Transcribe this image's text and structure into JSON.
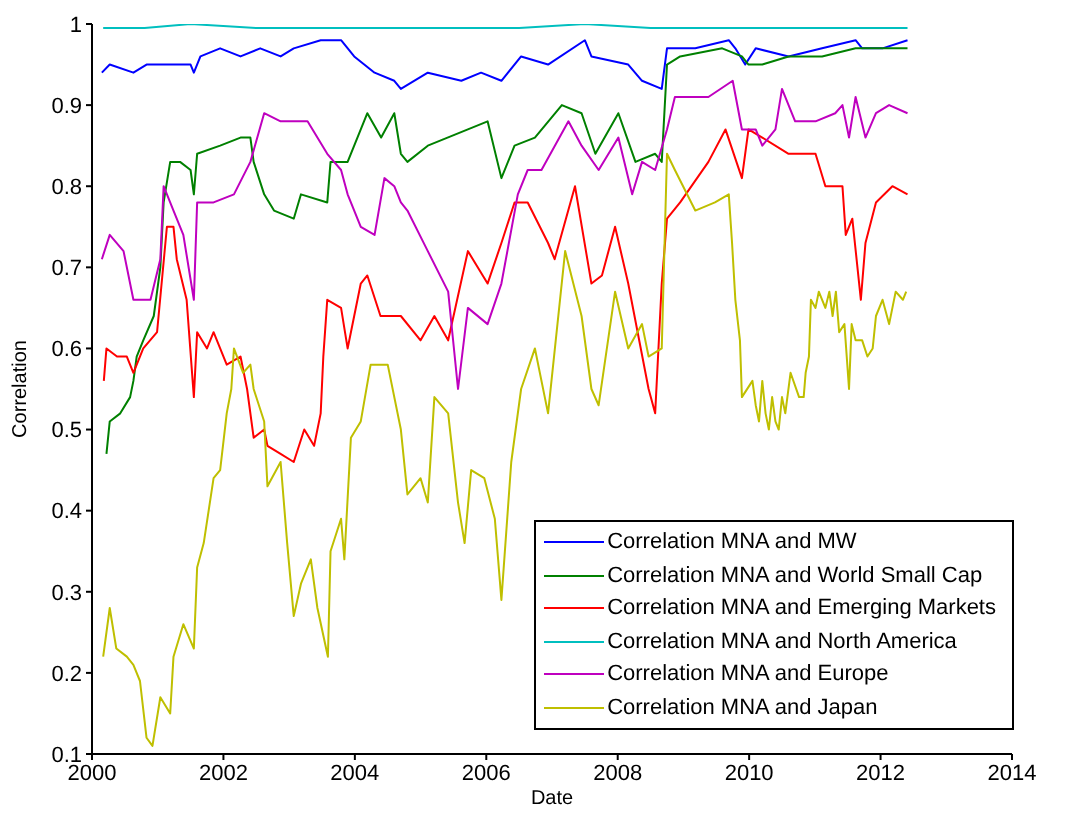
{
  "chart_data": {
    "type": "line",
    "xlabel": "Date",
    "ylabel": "Correlation",
    "xlim": [
      2000,
      2014
    ],
    "xticks": [
      2000,
      2002,
      2004,
      2006,
      2008,
      2010,
      2012,
      2014
    ],
    "ylim": [
      0.1,
      1
    ],
    "yticks": [
      0.1,
      0.2,
      0.3,
      0.4,
      0.5,
      0.6,
      0.7,
      0.8,
      0.9,
      1
    ],
    "legend": "bottom right",
    "series": [
      {
        "name": "Correlation MNA and MW",
        "color": "#0000ff",
        "x": [
          2000.15,
          2000.27,
          2000.63,
          2000.83,
          2001.5,
          2001.55,
          2001.65,
          2001.95,
          2002.26,
          2002.56,
          2002.87,
          2003.07,
          2003.48,
          2003.79,
          2003.99,
          2004.3,
          2004.6,
          2004.7,
          2005.11,
          2005.62,
          2005.92,
          2006.23,
          2006.53,
          2006.94,
          2007.5,
          2007.6,
          2008.16,
          2008.37,
          2008.67,
          2008.75,
          2009.18,
          2009.69,
          2009.79,
          2009.94,
          2010.1,
          2010.6,
          2011.11,
          2011.62,
          2011.72,
          2012.03,
          2012.41
        ],
        "values": [
          0.94,
          0.95,
          0.94,
          0.95,
          0.95,
          0.94,
          0.96,
          0.97,
          0.96,
          0.97,
          0.96,
          0.97,
          0.98,
          0.98,
          0.96,
          0.94,
          0.93,
          0.92,
          0.94,
          0.93,
          0.94,
          0.93,
          0.96,
          0.95,
          0.98,
          0.96,
          0.95,
          0.93,
          0.92,
          0.97,
          0.97,
          0.98,
          0.97,
          0.95,
          0.97,
          0.96,
          0.97,
          0.98,
          0.97,
          0.97,
          0.98
        ]
      },
      {
        "name": "Correlation MNA and World Small Cap",
        "color": "#008000",
        "x": [
          2000.22,
          2000.27,
          2000.43,
          2000.58,
          2000.63,
          2000.68,
          2000.78,
          2000.94,
          2001.04,
          2001.09,
          2001.19,
          2001.34,
          2001.5,
          2001.55,
          2001.6,
          2001.95,
          2002.26,
          2002.41,
          2002.46,
          2002.62,
          2002.77,
          2003.07,
          2003.18,
          2003.58,
          2003.63,
          2003.89,
          2004.09,
          2004.19,
          2004.4,
          2004.6,
          2004.7,
          2004.8,
          2005.11,
          2005.72,
          2006.02,
          2006.23,
          2006.43,
          2006.74,
          2007.15,
          2007.45,
          2007.66,
          2008.01,
          2008.27,
          2008.57,
          2008.67,
          2008.75,
          2008.95,
          2009.59,
          2009.89,
          2009.99,
          2010.2,
          2010.6,
          2011.11,
          2011.62,
          2012.41
        ],
        "values": [
          0.47,
          0.51,
          0.52,
          0.54,
          0.56,
          0.59,
          0.61,
          0.64,
          0.7,
          0.78,
          0.83,
          0.83,
          0.82,
          0.79,
          0.84,
          0.85,
          0.86,
          0.86,
          0.83,
          0.79,
          0.77,
          0.76,
          0.79,
          0.78,
          0.83,
          0.83,
          0.87,
          0.89,
          0.86,
          0.89,
          0.84,
          0.83,
          0.85,
          0.87,
          0.88,
          0.81,
          0.85,
          0.86,
          0.9,
          0.89,
          0.84,
          0.89,
          0.83,
          0.84,
          0.83,
          0.95,
          0.96,
          0.97,
          0.96,
          0.95,
          0.95,
          0.96,
          0.96,
          0.97,
          0.97
        ]
      },
      {
        "name": "Correlation MNA and Emerging Markets",
        "color": "#ff0000",
        "x": [
          2000.18,
          2000.22,
          2000.38,
          2000.53,
          2000.63,
          2000.78,
          2000.99,
          2001.14,
          2001.24,
          2001.29,
          2001.44,
          2001.55,
          2001.6,
          2001.75,
          2001.85,
          2002.05,
          2002.26,
          2002.36,
          2002.46,
          2002.62,
          2002.67,
          2002.87,
          2003.07,
          2003.23,
          2003.38,
          2003.48,
          2003.52,
          2003.58,
          2003.79,
          2003.89,
          2004.09,
          2004.19,
          2004.39,
          2004.7,
          2005,
          2005.21,
          2005.42,
          2005.72,
          2006.02,
          2006.23,
          2006.43,
          2006.63,
          2006.94,
          2007.04,
          2007.35,
          2007.6,
          2007.76,
          2007.96,
          2008.16,
          2008.47,
          2008.57,
          2008.67,
          2008.75,
          2008.95,
          2009.38,
          2009.64,
          2009.89,
          2009.99,
          2010.2,
          2010.6,
          2011.01,
          2011.16,
          2011.42,
          2011.47,
          2011.57,
          2011.7,
          2011.77,
          2011.93,
          2012.18,
          2012.41
        ],
        "values": [
          0.56,
          0.6,
          0.59,
          0.59,
          0.57,
          0.6,
          0.62,
          0.75,
          0.75,
          0.71,
          0.66,
          0.54,
          0.62,
          0.6,
          0.62,
          0.58,
          0.59,
          0.55,
          0.49,
          0.5,
          0.48,
          0.47,
          0.46,
          0.5,
          0.48,
          0.52,
          0.59,
          0.66,
          0.65,
          0.6,
          0.68,
          0.69,
          0.64,
          0.64,
          0.61,
          0.64,
          0.61,
          0.72,
          0.68,
          0.73,
          0.78,
          0.78,
          0.73,
          0.71,
          0.8,
          0.68,
          0.69,
          0.75,
          0.68,
          0.55,
          0.52,
          0.68,
          0.76,
          0.78,
          0.83,
          0.87,
          0.81,
          0.87,
          0.86,
          0.84,
          0.84,
          0.8,
          0.8,
          0.74,
          0.76,
          0.66,
          0.73,
          0.78,
          0.8,
          0.79
        ]
      },
      {
        "name": "Correlation MNA and North America",
        "color": "#00bfbf",
        "x": [
          2000.17,
          2000.8,
          2001.5,
          2002.5,
          2003.5,
          2004.5,
          2005.5,
          2006.5,
          2007.5,
          2008.5,
          2009.5,
          2010.5,
          2011.5,
          2012.41
        ],
        "values": [
          0.995,
          0.995,
          1,
          0.995,
          0.995,
          0.995,
          0.995,
          0.995,
          1,
          0.995,
          0.995,
          0.995,
          0.995,
          0.995
        ]
      },
      {
        "name": "Correlation MNA and Europe",
        "color": "#bf00bf",
        "x": [
          2000.15,
          2000.27,
          2000.48,
          2000.63,
          2000.89,
          2001.04,
          2001.09,
          2001.24,
          2001.39,
          2001.55,
          2001.6,
          2001.85,
          2002.16,
          2002.41,
          2002.62,
          2002.87,
          2003.12,
          2003.28,
          2003.58,
          2003.79,
          2003.89,
          2004.09,
          2004.3,
          2004.45,
          2004.6,
          2004.7,
          2004.8,
          2005.11,
          2005.42,
          2005.57,
          2005.72,
          2006.02,
          2006.23,
          2006.48,
          2006.63,
          2006.84,
          2007.25,
          2007.45,
          2007.71,
          2008.01,
          2008.22,
          2008.37,
          2008.57,
          2008.75,
          2008.87,
          2009.38,
          2009.75,
          2009.89,
          2010.1,
          2010.2,
          2010.4,
          2010.5,
          2010.7,
          2011.01,
          2011.31,
          2011.42,
          2011.52,
          2011.62,
          2011.77,
          2011.93,
          2012.13,
          2012.41
        ],
        "values": [
          0.71,
          0.74,
          0.72,
          0.66,
          0.66,
          0.71,
          0.8,
          0.77,
          0.74,
          0.66,
          0.78,
          0.78,
          0.79,
          0.83,
          0.89,
          0.88,
          0.88,
          0.88,
          0.84,
          0.82,
          0.79,
          0.75,
          0.74,
          0.81,
          0.8,
          0.78,
          0.77,
          0.72,
          0.67,
          0.55,
          0.65,
          0.63,
          0.68,
          0.79,
          0.82,
          0.82,
          0.88,
          0.85,
          0.82,
          0.86,
          0.79,
          0.83,
          0.82,
          0.87,
          0.91,
          0.91,
          0.93,
          0.87,
          0.87,
          0.85,
          0.87,
          0.92,
          0.88,
          0.88,
          0.89,
          0.9,
          0.86,
          0.91,
          0.86,
          0.89,
          0.9,
          0.89
        ]
      },
      {
        "name": "Correlation MNA and Japan",
        "color": "#bfbf00",
        "x": [
          2000.17,
          2000.27,
          2000.37,
          2000.53,
          2000.63,
          2000.73,
          2000.83,
          2000.92,
          2001.04,
          2001.19,
          2001.24,
          2001.39,
          2001.55,
          2001.6,
          2001.7,
          2001.85,
          2001.95,
          2002.05,
          2002.12,
          2002.16,
          2002.3,
          2002.41,
          2002.46,
          2002.62,
          2002.67,
          2002.87,
          2002.97,
          2003.07,
          2003.18,
          2003.33,
          2003.43,
          2003.59,
          2003.63,
          2003.79,
          2003.84,
          2003.94,
          2004.09,
          2004.24,
          2004.5,
          2004.7,
          2004.8,
          2005,
          2005.11,
          2005.21,
          2005.42,
          2005.57,
          2005.67,
          2005.77,
          2005.97,
          2006.13,
          2006.23,
          2006.38,
          2006.53,
          2006.74,
          2006.94,
          2007.2,
          2007.45,
          2007.6,
          2007.71,
          2007.96,
          2008.16,
          2008.37,
          2008.47,
          2008.67,
          2008.75,
          2008.87,
          2009.18,
          2009.48,
          2009.69,
          2009.74,
          2009.79,
          2009.86,
          2009.89,
          2010.05,
          2010.1,
          2010.15,
          2010.2,
          2010.25,
          2010.3,
          2010.35,
          2010.4,
          2010.45,
          2010.5,
          2010.55,
          2010.63,
          2010.76,
          2010.83,
          2010.86,
          2010.91,
          2010.94,
          2011.01,
          2011.06,
          2011.16,
          2011.22,
          2011.27,
          2011.32,
          2011.37,
          2011.45,
          2011.52,
          2011.56,
          2011.62,
          2011.72,
          2011.8,
          2011.88,
          2011.93,
          2012.03,
          2012.13,
          2012.23,
          2012.34,
          2012.39
        ],
        "values": [
          0.22,
          0.28,
          0.23,
          0.22,
          0.21,
          0.19,
          0.12,
          0.11,
          0.17,
          0.15,
          0.22,
          0.26,
          0.23,
          0.33,
          0.36,
          0.44,
          0.45,
          0.52,
          0.55,
          0.6,
          0.57,
          0.58,
          0.55,
          0.51,
          0.43,
          0.46,
          0.36,
          0.27,
          0.31,
          0.34,
          0.28,
          0.22,
          0.35,
          0.39,
          0.34,
          0.49,
          0.51,
          0.58,
          0.58,
          0.5,
          0.42,
          0.44,
          0.41,
          0.54,
          0.52,
          0.41,
          0.36,
          0.45,
          0.44,
          0.39,
          0.29,
          0.46,
          0.55,
          0.6,
          0.52,
          0.72,
          0.64,
          0.55,
          0.53,
          0.67,
          0.6,
          0.63,
          0.59,
          0.6,
          0.84,
          0.82,
          0.77,
          0.78,
          0.79,
          0.73,
          0.66,
          0.61,
          0.54,
          0.56,
          0.53,
          0.51,
          0.56,
          0.52,
          0.5,
          0.54,
          0.51,
          0.5,
          0.54,
          0.52,
          0.57,
          0.54,
          0.54,
          0.57,
          0.59,
          0.66,
          0.65,
          0.67,
          0.65,
          0.67,
          0.64,
          0.67,
          0.62,
          0.63,
          0.55,
          0.63,
          0.61,
          0.61,
          0.59,
          0.6,
          0.64,
          0.66,
          0.63,
          0.67,
          0.66,
          0.67
        ]
      }
    ]
  }
}
